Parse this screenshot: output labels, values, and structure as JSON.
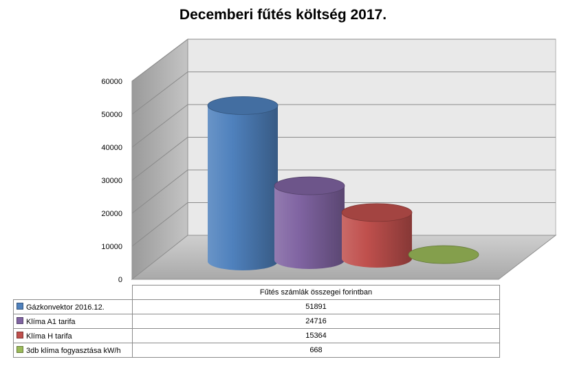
{
  "title": "Decemberi fűtés költség 2017.",
  "chart_data": {
    "type": "bar",
    "style": "3d-cylinder",
    "title": "Decemberi fűtés költség 2017.",
    "categories": [
      "Fűtés számlák összegei forintban"
    ],
    "series": [
      {
        "name": "Gázkonvektor 2016.12.",
        "values": [
          51891
        ],
        "color": "#4f81bd"
      },
      {
        "name": "Klíma A1 tarifa",
        "values": [
          24716
        ],
        "color": "#8064a2"
      },
      {
        "name": "Klíma H tarifa",
        "values": [
          15364
        ],
        "color": "#c0504d"
      },
      {
        "name": "3db klíma fogyasztása  kW/h",
        "values": [
          668
        ],
        "color": "#9bbb59"
      }
    ],
    "ylim": [
      0,
      60000
    ],
    "yticks": [
      0,
      10000,
      20000,
      30000,
      40000,
      50000,
      60000
    ],
    "grid": true,
    "legend": "data-table-bottom"
  },
  "table": {
    "header": "Fűtés számlák összegei forintban",
    "rows": [
      {
        "label": "Gázkonvektor 2016.12.",
        "value": "51891",
        "color": "#4f81bd"
      },
      {
        "label": "Klíma A1 tarifa",
        "value": "24716",
        "color": "#8064a2"
      },
      {
        "label": "Klíma H tarifa",
        "value": "15364",
        "color": "#c0504d"
      },
      {
        "label": "3db klíma fogyasztása  kW/h",
        "value": "668",
        "color": "#9bbb59"
      }
    ]
  }
}
